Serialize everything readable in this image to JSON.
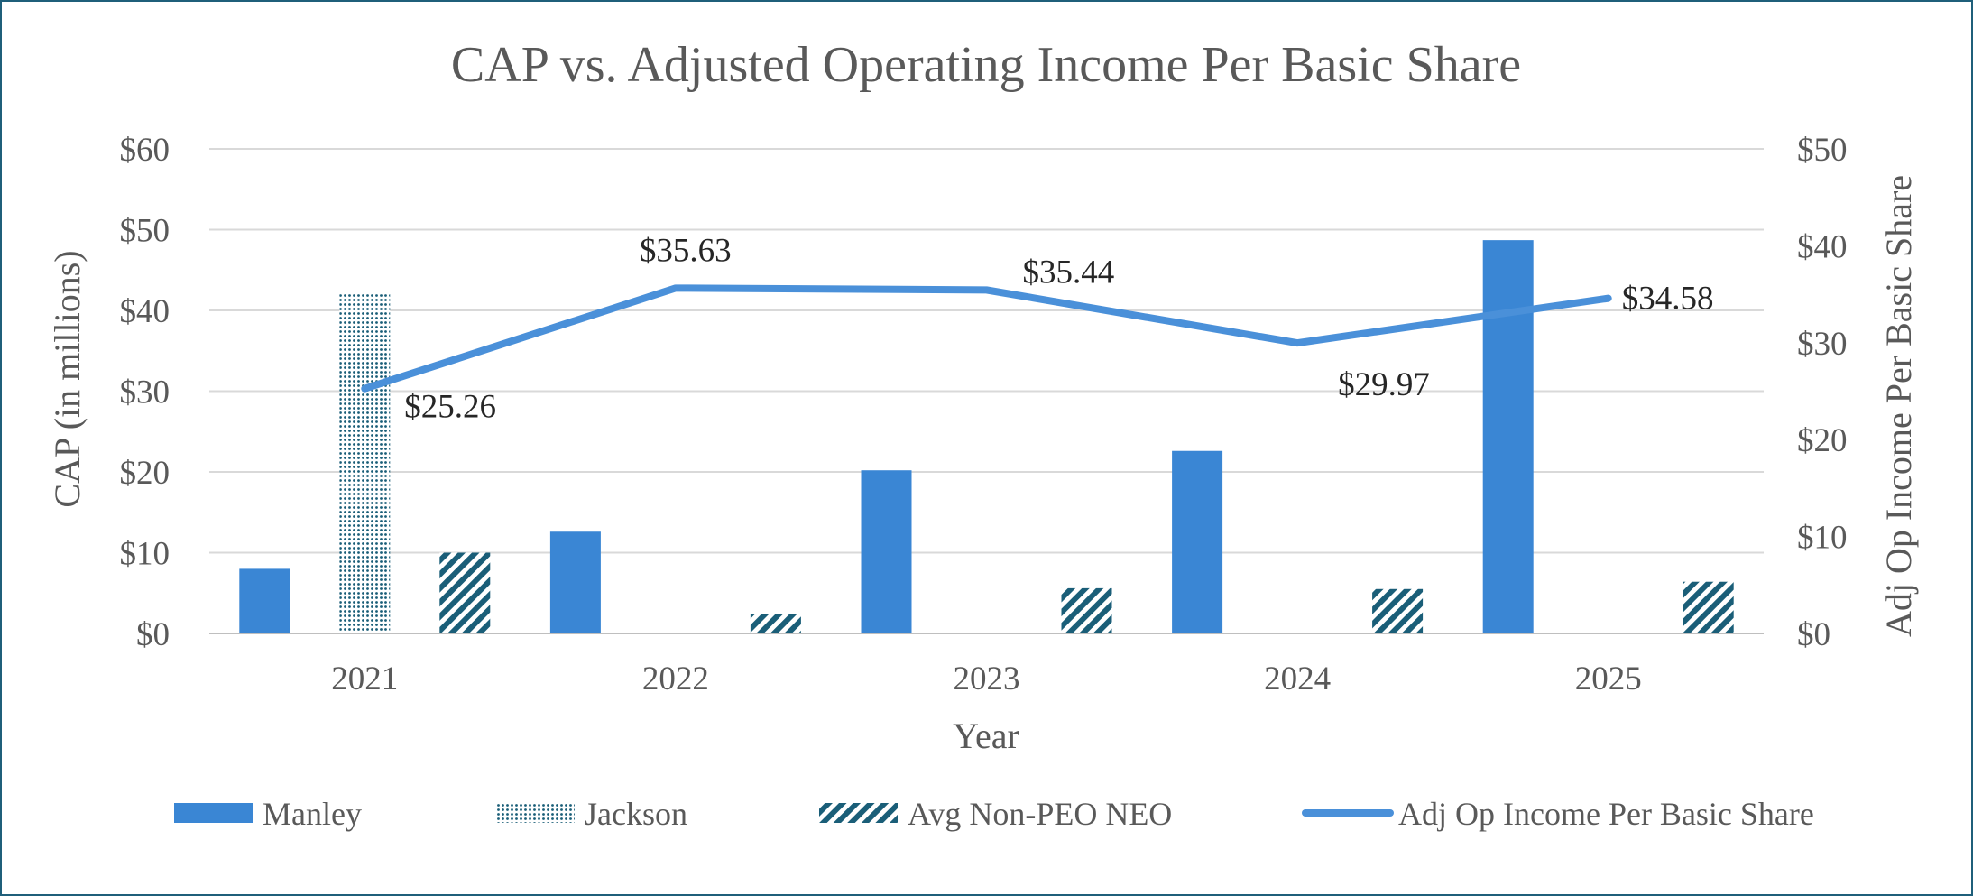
{
  "chart_data": {
    "type": "bar",
    "title": "CAP vs. Adjusted Operating Income Per Basic Share",
    "xlabel": "Year",
    "ylabel": "CAP (in millions)",
    "y2label": "Adj Op Income Per Basic Share",
    "categories": [
      "2021",
      "2022",
      "2023",
      "2024",
      "2025"
    ],
    "ylim": [
      0,
      60
    ],
    "y2lim": [
      0,
      50
    ],
    "yticks": [
      "$0",
      "$10",
      "$20",
      "$30",
      "$40",
      "$50",
      "$60"
    ],
    "y2ticks": [
      "$0",
      "$10",
      "$20",
      "$30",
      "$40",
      "$50"
    ],
    "grid": true,
    "legend_position": "bottom",
    "series": [
      {
        "name": "Manley",
        "kind": "bar",
        "pattern": "solid",
        "color": "#3a86d4",
        "values": [
          8.0,
          12.6,
          20.2,
          22.6,
          48.7
        ]
      },
      {
        "name": "Jackson",
        "kind": "bar",
        "pattern": "dots",
        "color": "#1a5e78",
        "values": [
          42.0,
          null,
          null,
          null,
          null
        ]
      },
      {
        "name": "Avg Non-PEO NEO",
        "kind": "bar",
        "pattern": "stripes",
        "color": "#1a5e78",
        "values": [
          10.0,
          2.4,
          5.6,
          5.5,
          6.4
        ]
      },
      {
        "name": "Adj Op Income Per Basic Share",
        "kind": "line",
        "axis": "right",
        "color": "#4a90d9",
        "values": [
          25.26,
          35.63,
          35.44,
          29.97,
          34.58
        ],
        "labels": [
          "$25.26",
          "$35.63",
          "$35.44",
          "$29.97",
          "$34.58"
        ]
      }
    ]
  }
}
